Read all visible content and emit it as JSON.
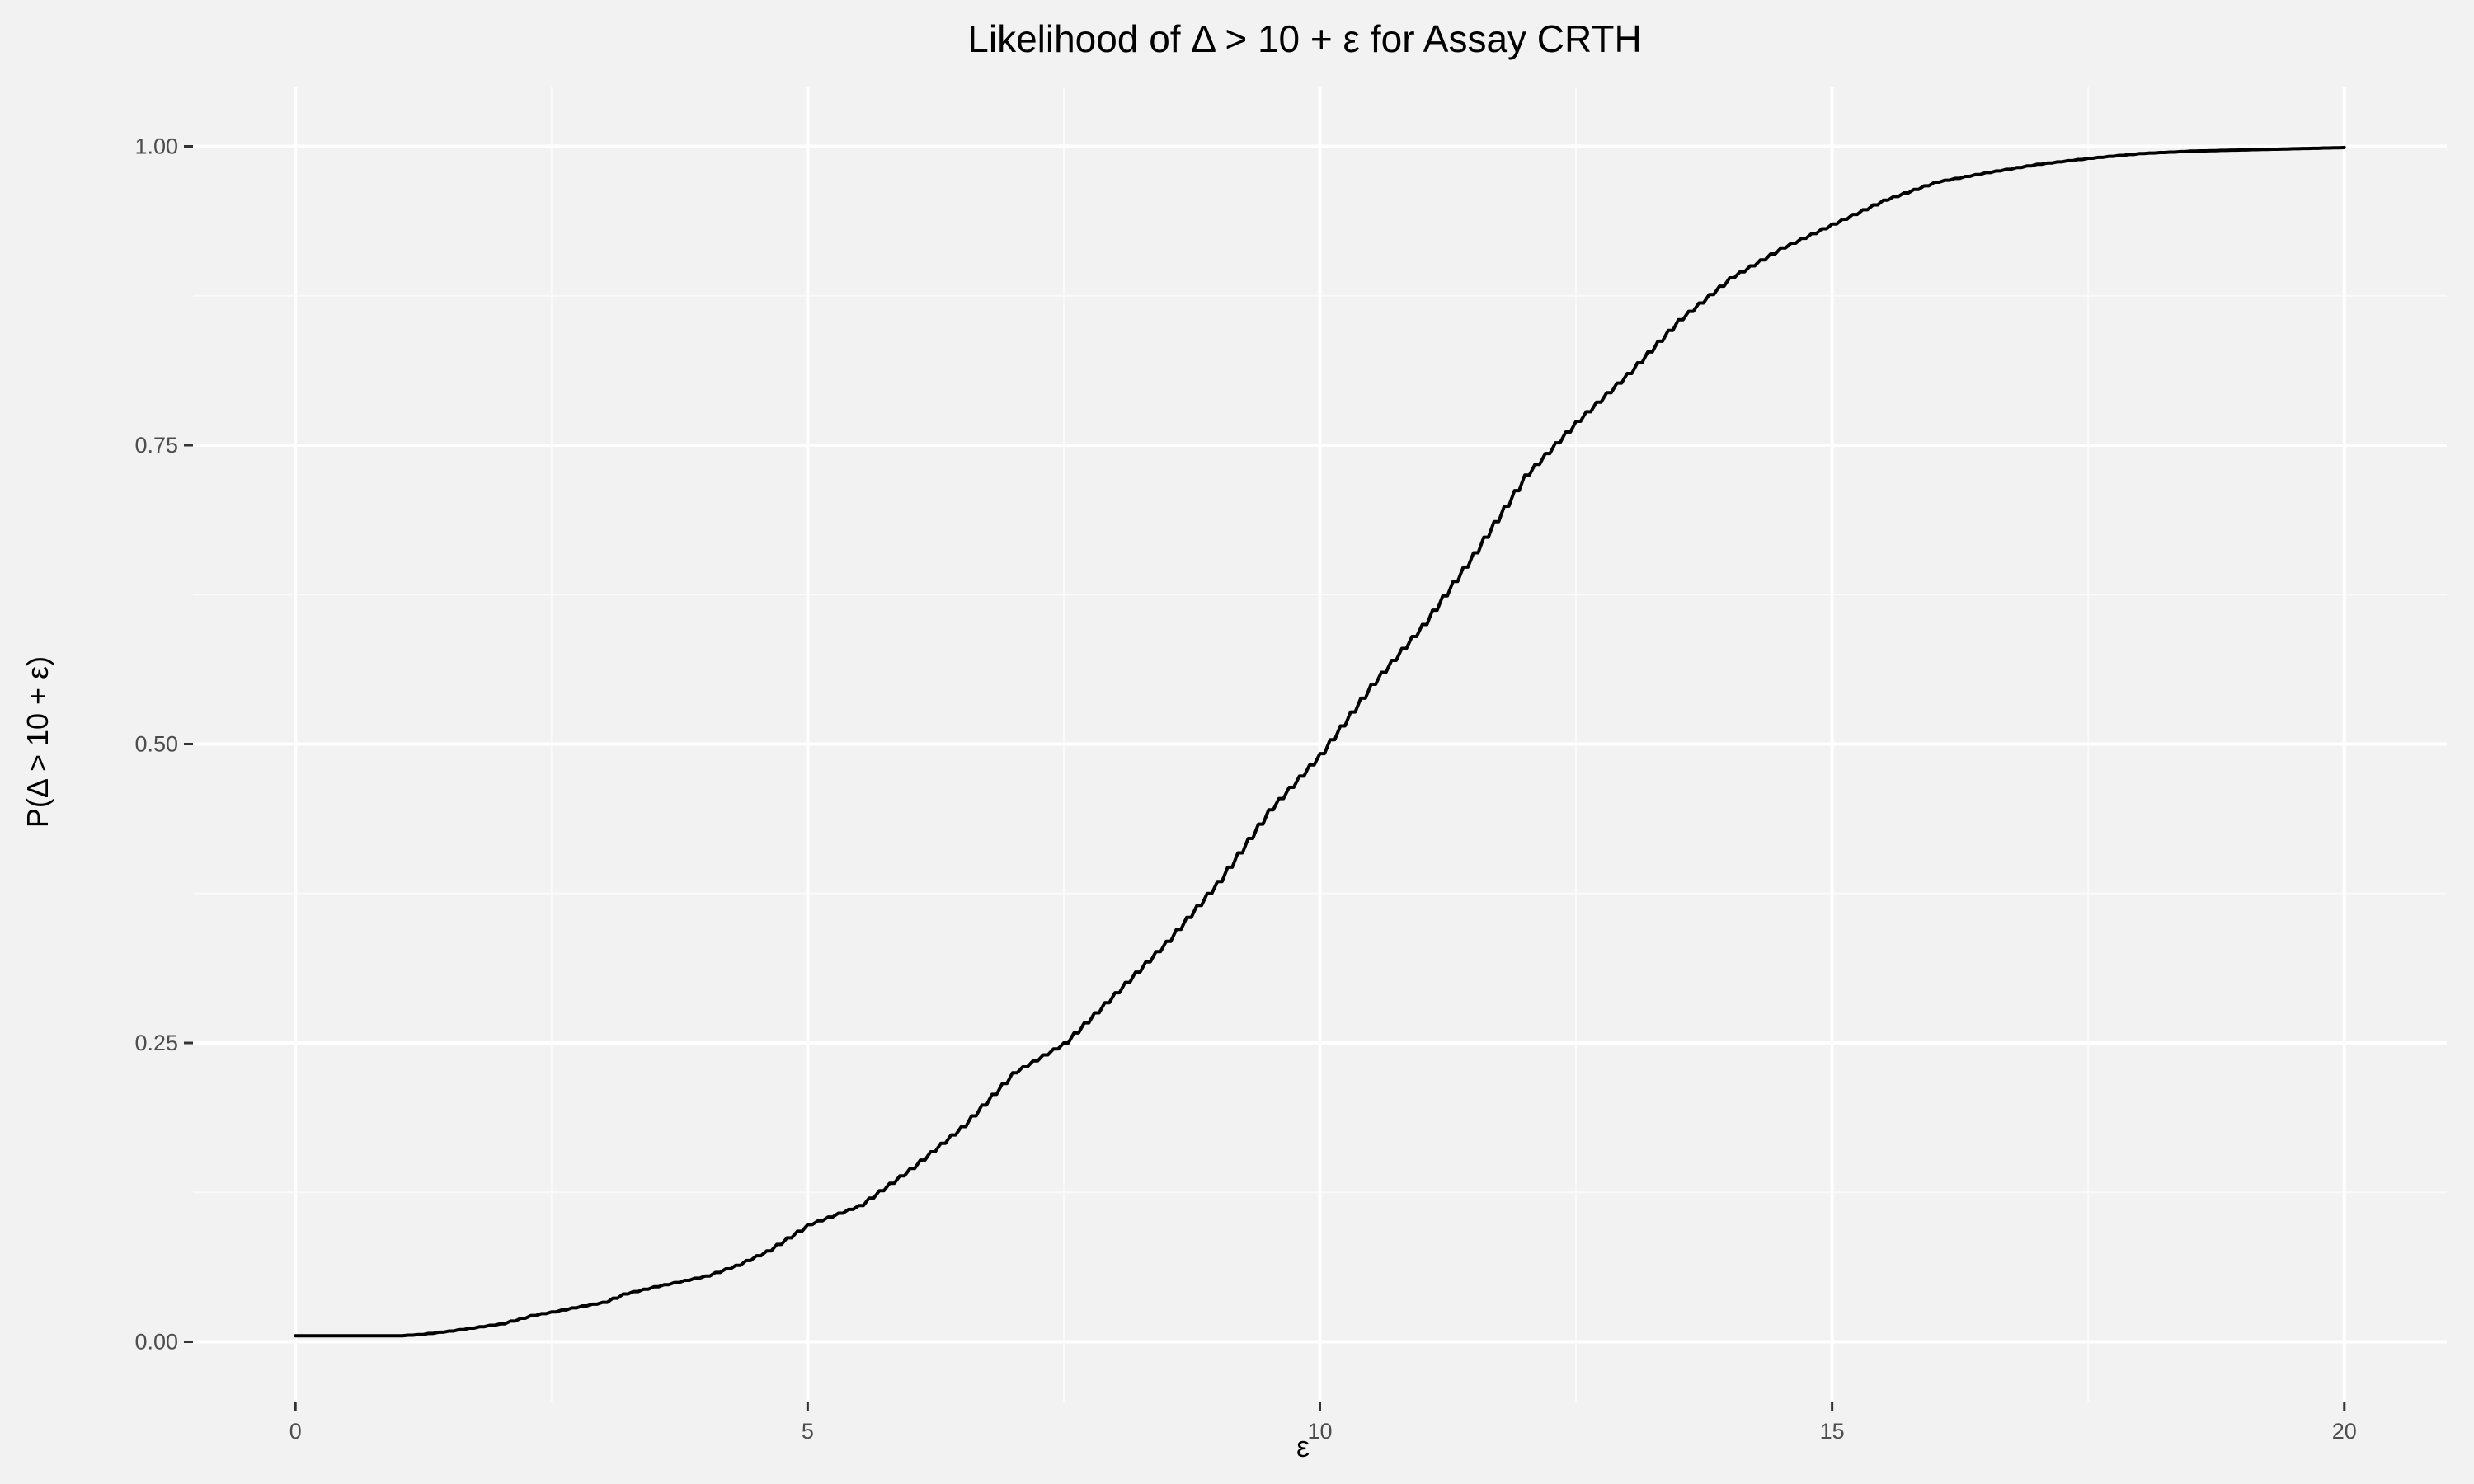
{
  "chart_data": {
    "type": "line",
    "title": "Likelihood of Δ > 10 + ε for Assay CRTH",
    "xlabel": "ε",
    "ylabel": "P(Δ > 10 + ε)",
    "xlim": [
      -1,
      21
    ],
    "ylim": [
      -0.05,
      1.05
    ],
    "x_ticks": [
      0,
      5,
      10,
      15,
      20
    ],
    "x_tick_labels": [
      "0",
      "5",
      "10",
      "15",
      "20"
    ],
    "y_ticks": [
      0,
      0.25,
      0.5,
      0.75,
      1
    ],
    "y_tick_labels": [
      "0.00",
      "0.25",
      "0.50",
      "0.75",
      "1.00"
    ],
    "grid": true,
    "legend": "none",
    "colors": {
      "panel_background": "#f2f2f2",
      "grid_major": "#ffffff",
      "grid_minor": "#fafafa",
      "line": "#000000"
    },
    "series": [
      {
        "x": [
          0,
          0.5,
          1.0,
          1.2,
          1.5,
          2.0,
          2.3,
          2.5,
          2.8,
          3.0,
          3.2,
          3.5,
          4.0,
          4.3,
          4.6,
          5.0,
          5.5,
          6.0,
          6.5,
          7.0,
          7.5,
          8.0,
          8.5,
          9.0,
          9.5,
          10.0,
          10.5,
          11.0,
          11.5,
          12.0,
          12.5,
          13.0,
          13.5,
          14.0,
          14.5,
          15.0,
          15.5,
          16.0,
          16.5,
          17.0,
          17.5,
          18.0,
          18.5,
          19.0,
          19.5,
          20.0
        ],
        "y": [
          0.005,
          0.005,
          0.005,
          0.006,
          0.009,
          0.015,
          0.022,
          0.025,
          0.03,
          0.033,
          0.04,
          0.046,
          0.055,
          0.064,
          0.076,
          0.098,
          0.114,
          0.145,
          0.18,
          0.225,
          0.25,
          0.292,
          0.335,
          0.385,
          0.445,
          0.492,
          0.55,
          0.6,
          0.66,
          0.725,
          0.77,
          0.81,
          0.855,
          0.89,
          0.915,
          0.935,
          0.955,
          0.97,
          0.978,
          0.985,
          0.99,
          0.994,
          0.996,
          0.997,
          0.998,
          0.999
        ]
      }
    ]
  }
}
